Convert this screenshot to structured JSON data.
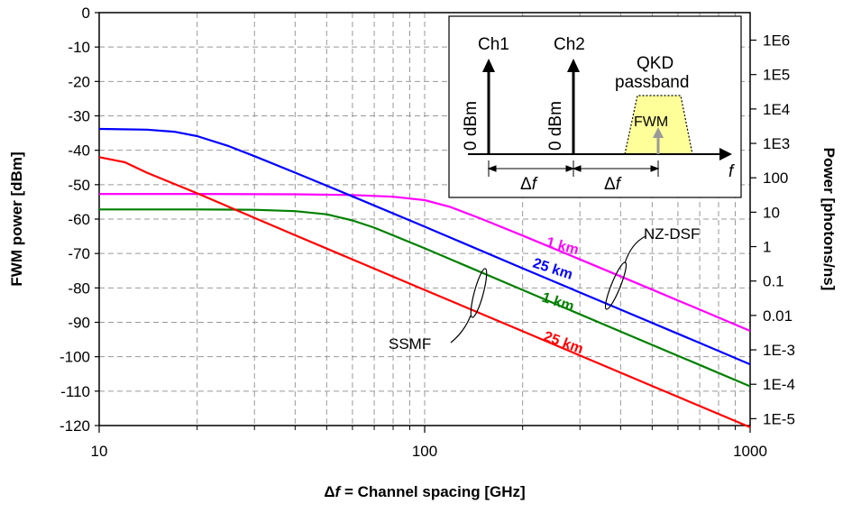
{
  "chart_data": {
    "type": "line",
    "xscale": "log",
    "xlim": [
      10,
      1000
    ],
    "ylim": [
      -120,
      0
    ],
    "x_ticks": [
      "10",
      "100",
      "1000"
    ],
    "y_ticks": [
      "0",
      "-10",
      "-20",
      "-30",
      "-40",
      "-50",
      "-60",
      "-70",
      "-80",
      "-90",
      "-100",
      "-110",
      "-120"
    ],
    "y2_ticks": [
      {
        "label": "1E6",
        "dbm": -8
      },
      {
        "label": "1E5",
        "dbm": -18
      },
      {
        "label": "1E4",
        "dbm": -28
      },
      {
        "label": "1E3",
        "dbm": -38
      },
      {
        "label": "100",
        "dbm": -48
      },
      {
        "label": "10",
        "dbm": -58
      },
      {
        "label": "1",
        "dbm": -68
      },
      {
        "label": "0.1",
        "dbm": -78
      },
      {
        "label": "0.01",
        "dbm": -88
      },
      {
        "label": "1E-3",
        "dbm": -98
      },
      {
        "label": "1E-4",
        "dbm": -108
      },
      {
        "label": "1E-5",
        "dbm": -118
      }
    ],
    "xlabel_delta": "Δ",
    "xlabel_f": "f",
    "xlabel_rest": " = Channel spacing [GHz]",
    "ylabel": "FWM power [dBm]",
    "y2label": "Power [photons/ns]",
    "grid": true,
    "series": [
      {
        "name": "1 km",
        "group": "NZ-DSF",
        "color": "#ff00ff",
        "points": [
          [
            10,
            -52.7
          ],
          [
            20,
            -52.7
          ],
          [
            40,
            -52.8
          ],
          [
            60,
            -53.0
          ],
          [
            80,
            -53.5
          ],
          [
            100,
            -54.5
          ],
          [
            120,
            -56.5
          ],
          [
            150,
            -60.0
          ],
          [
            200,
            -64.8
          ],
          [
            300,
            -71.7
          ],
          [
            500,
            -80.5
          ],
          [
            700,
            -86.3
          ],
          [
            1000,
            -92.5
          ]
        ]
      },
      {
        "name": "25 km",
        "group": "NZ-DSF",
        "color": "#0000ff",
        "points": [
          [
            10,
            -33.8
          ],
          [
            14,
            -34.0
          ],
          [
            17,
            -34.6
          ],
          [
            20,
            -35.9
          ],
          [
            25,
            -38.8
          ],
          [
            30,
            -41.7
          ],
          [
            40,
            -46.5
          ],
          [
            60,
            -53.4
          ],
          [
            100,
            -62.2
          ],
          [
            200,
            -74.3
          ],
          [
            400,
            -86.3
          ],
          [
            700,
            -96.0
          ],
          [
            1000,
            -102.2
          ]
        ]
      },
      {
        "name": "1 km",
        "group": "SSMF",
        "color": "#008000",
        "points": [
          [
            10,
            -57.2
          ],
          [
            20,
            -57.2
          ],
          [
            30,
            -57.3
          ],
          [
            40,
            -57.7
          ],
          [
            50,
            -58.6
          ],
          [
            60,
            -60.4
          ],
          [
            70,
            -62.5
          ],
          [
            100,
            -68.5
          ],
          [
            200,
            -80.6
          ],
          [
            400,
            -92.7
          ],
          [
            700,
            -102.4
          ],
          [
            1000,
            -108.6
          ]
        ]
      },
      {
        "name": "25 km",
        "group": "SSMF",
        "color": "#ff0000",
        "points": [
          [
            10,
            -42.0
          ],
          [
            12,
            -43.5
          ],
          [
            14,
            -46.5
          ],
          [
            20,
            -52.5
          ],
          [
            40,
            -64.7
          ],
          [
            100,
            -80.6
          ],
          [
            200,
            -92.6
          ],
          [
            500,
            -108.5
          ],
          [
            1000,
            -120.5
          ]
        ]
      }
    ],
    "curve_labels": [
      "1 km",
      "25 km",
      "1 km",
      "25 km"
    ],
    "annotations": {
      "nzdsf": "NZ-DSF",
      "ssmf": "SSMF"
    },
    "inset": {
      "ch1": "Ch1",
      "ch2": "Ch2",
      "level1": "0 dBm",
      "level2": "0 dBm",
      "qkd_line1": "QKD",
      "qkd_line2": "passband",
      "fwm": "FWM",
      "delta": "Δ",
      "f": "f",
      "f_axis": "f",
      "passband_fill": "#ffff99"
    }
  }
}
